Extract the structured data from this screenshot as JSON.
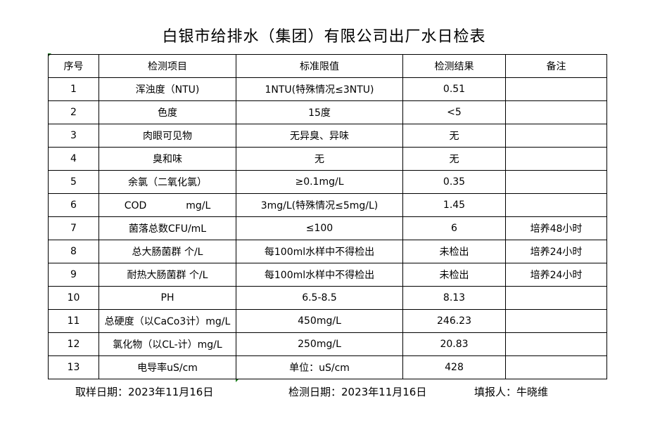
{
  "title": "白银市给排水（集团）有限公司出厂水日检表",
  "headers": [
    "序号",
    "检测项目",
    "标准限值",
    "检测结果",
    "备注"
  ],
  "rows": [
    [
      "1",
      "浑浊度（NTU)",
      "1NTU(特殊情况≤3NTU)",
      "0.51",
      ""
    ],
    [
      "2",
      "色度",
      "15度",
      "<5",
      ""
    ],
    [
      "3",
      "肉眼可见物",
      "无异臭、异味",
      "无",
      ""
    ],
    [
      "4",
      "臭和味",
      "无",
      "无",
      ""
    ],
    [
      "5",
      "余氯（二氧化氯）",
      "≥0.1mg/L",
      "0.35",
      ""
    ],
    [
      "6",
      "COD　　　　mg/L",
      "3mg/L(特殊情况≤5mg/L)",
      "1.45",
      ""
    ],
    [
      "7",
      "菌落总数CFU/mL",
      "≤100",
      "6",
      "培养48小时"
    ],
    [
      "8",
      "总大肠菌群 个/L",
      "每100ml水样中不得检出",
      "未检出",
      "培养24小时"
    ],
    [
      "9",
      "耐热大肠菌群 个/L",
      "每100ml水样中不得检出",
      "未检出",
      "培养24小时"
    ],
    [
      "10",
      "PH",
      "6.5-8.5",
      "8.13",
      ""
    ],
    [
      "11",
      "总硬度（以CaCo3计）mg/L",
      "450mg/L",
      "246.23",
      ""
    ],
    [
      "12",
      "氯化物（以CL-计）mg/L",
      "250mg/L",
      "20.83",
      ""
    ],
    [
      "13",
      "电导率uS/cm",
      "单位：uS/cm",
      "428",
      ""
    ]
  ],
  "footer": {
    "sample_date": "取样日期：2023年11月16日",
    "test_date": "检测日期：2023年11月16日",
    "reporter": "填报人：牛晓维"
  }
}
